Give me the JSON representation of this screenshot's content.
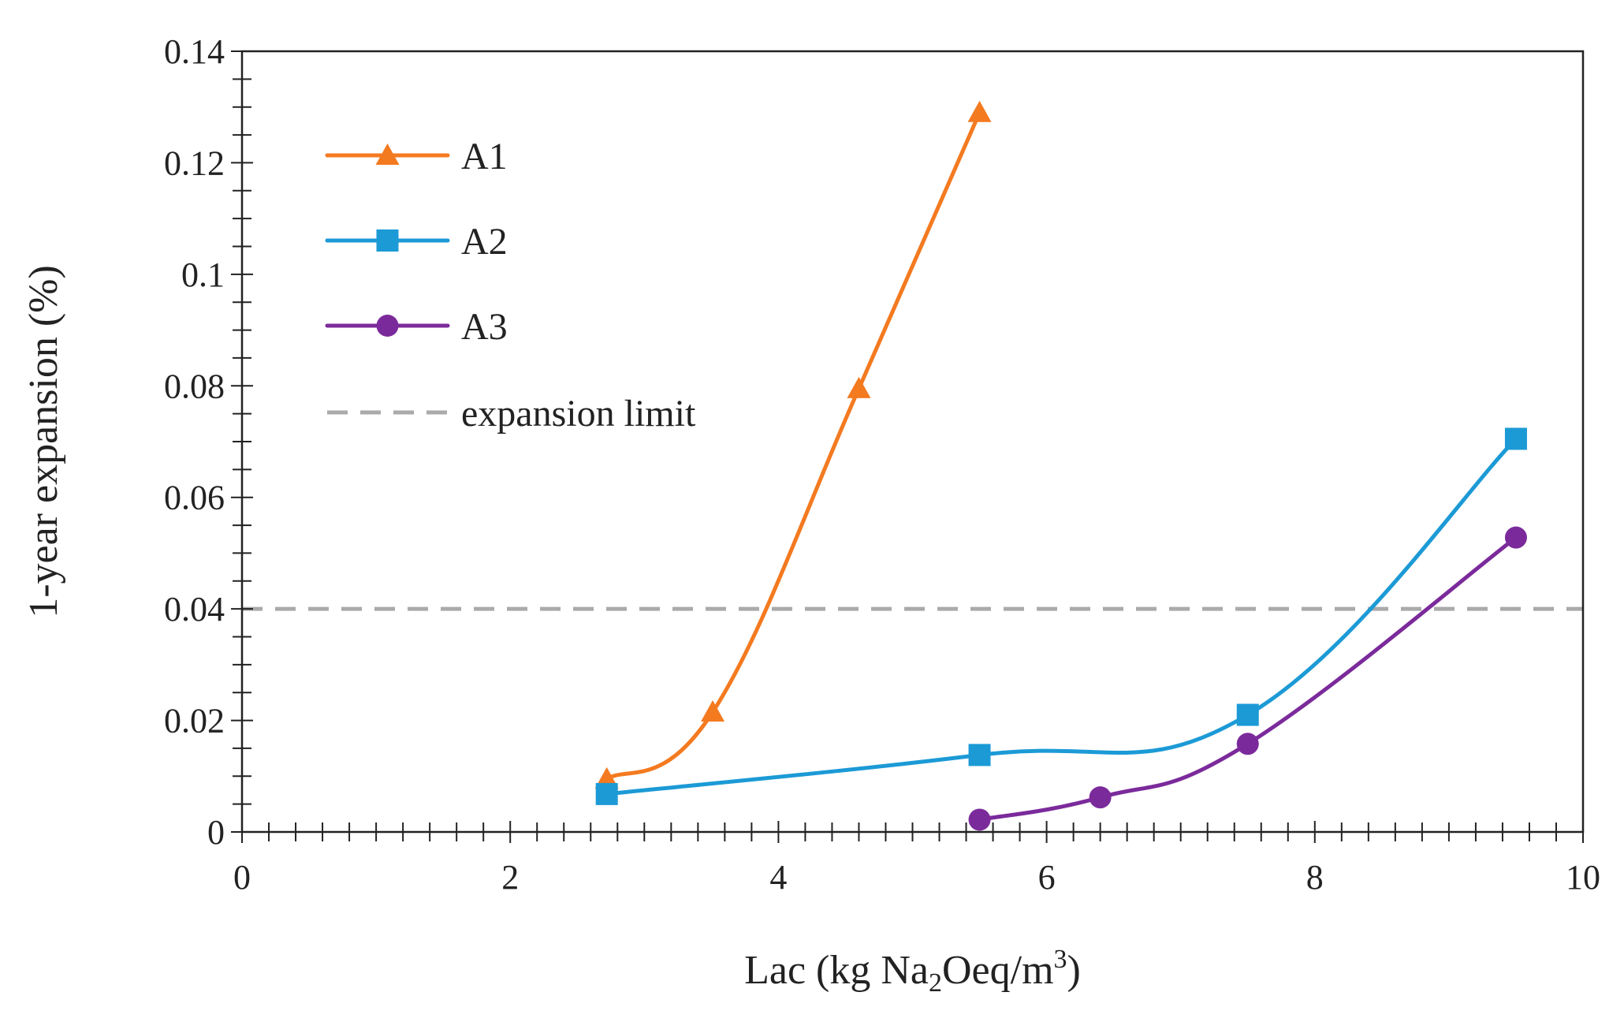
{
  "chart_data": {
    "type": "line",
    "title": "",
    "xlabel": {
      "prefix": "Lac (kg Na",
      "sub": "2",
      "middle": "Oeq/m",
      "sup": "3",
      "suffix": ")"
    },
    "ylabel": "1-year expansion (%)",
    "xlim": [
      0,
      10
    ],
    "ylim": [
      0,
      0.14
    ],
    "xticks": [
      0,
      2,
      4,
      6,
      8,
      10
    ],
    "xtick_labels": [
      "0",
      "2",
      "4",
      "6",
      "8",
      "10"
    ],
    "yticks": [
      0,
      0.02,
      0.04,
      0.06,
      0.08,
      0.1,
      0.12,
      0.14
    ],
    "ytick_labels": [
      "0",
      "0.02",
      "0.04",
      "0.06",
      "0.08",
      "0.1",
      "0.12",
      "0.14"
    ],
    "grid": false,
    "legend_position": "top-left",
    "series": [
      {
        "name": "A1",
        "marker": "triangle",
        "color": "#F47A20",
        "x": [
          2.72,
          3.51,
          4.6,
          5.5
        ],
        "y": [
          0.0095,
          0.0215,
          0.0795,
          0.129
        ]
      },
      {
        "name": "A2",
        "marker": "square",
        "color": "#1C9AD6",
        "x": [
          2.72,
          5.5,
          7.5,
          9.5
        ],
        "y": [
          0.0068,
          0.0138,
          0.021,
          0.0705
        ]
      },
      {
        "name": "A3",
        "marker": "circle",
        "color": "#7B2A9B",
        "x": [
          5.5,
          6.4,
          7.5,
          9.5
        ],
        "y": [
          0.0022,
          0.0062,
          0.0158,
          0.0528
        ]
      }
    ],
    "reference_lines": [
      {
        "name": "expansion limit",
        "y": 0.04,
        "color": "#AAAAAA",
        "style": "dashed"
      }
    ]
  }
}
